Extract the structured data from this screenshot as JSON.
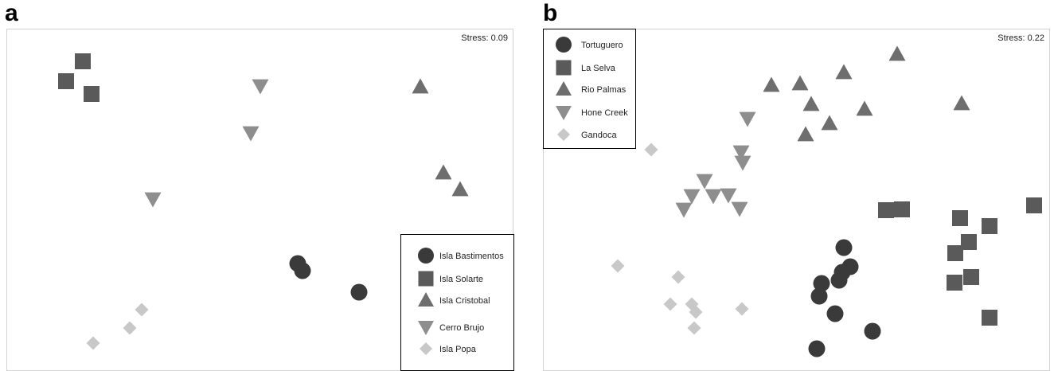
{
  "panels": [
    {
      "letter": "a",
      "stress_label": "Stress: 0.09",
      "legend_placement": "bottom-right"
    },
    {
      "letter": "b",
      "stress_label": "Stress: 0.22",
      "legend_placement": "top-left"
    }
  ],
  "chart_data": [
    {
      "type": "scatter",
      "title": "",
      "xlabel": "",
      "ylabel": "",
      "grid": false,
      "xlim": [
        0,
        637
      ],
      "ylim": [
        0,
        430
      ],
      "annotation": "Stress: 0.09",
      "series": [
        {
          "name": "Isla Bastimentos",
          "marker": "circle",
          "color": "#3a3a3a",
          "points": [
            [
              366,
              135
            ],
            [
              372,
              126
            ],
            [
              443,
              99
            ]
          ]
        },
        {
          "name": "Isla Solarte",
          "marker": "square",
          "color": "#5a5a5a",
          "points": [
            [
              96,
              389
            ],
            [
              75,
              364
            ],
            [
              107,
              348
            ]
          ]
        },
        {
          "name": "Isla Cristobal",
          "marker": "triangle-up",
          "color": "#6e6e6e",
          "points": [
            [
              520,
              357
            ],
            [
              549,
              249
            ],
            [
              570,
              228
            ]
          ]
        },
        {
          "name": "Cerro Brujo",
          "marker": "triangle-down",
          "color": "#8e8e8e",
          "points": [
            [
              319,
              358
            ],
            [
              307,
              299
            ],
            [
              184,
              216
            ]
          ]
        },
        {
          "name": "Isla Popa",
          "marker": "diamond",
          "color": "#c8c8c8",
          "points": [
            [
              170,
              77
            ],
            [
              155,
              54
            ],
            [
              109,
              35
            ]
          ]
        }
      ]
    },
    {
      "type": "scatter",
      "title": "",
      "xlabel": "",
      "ylabel": "",
      "grid": false,
      "xlim": [
        0,
        637
      ],
      "ylim": [
        0,
        430
      ],
      "annotation": "Stress: 0.22",
      "series": [
        {
          "name": "Tortuguero",
          "marker": "circle",
          "color": "#3a3a3a",
          "points": [
            [
              378,
              155
            ],
            [
              386,
              131
            ],
            [
              376,
              124
            ],
            [
              372,
              114
            ],
            [
              350,
              110
            ],
            [
              347,
              94
            ],
            [
              367,
              72
            ],
            [
              414,
              50
            ],
            [
              344,
              28
            ]
          ]
        },
        {
          "name": "La Selva",
          "marker": "square",
          "color": "#5a5a5a",
          "points": [
            [
              431,
              202
            ],
            [
              451,
              203
            ],
            [
              524,
              192
            ],
            [
              561,
              182
            ],
            [
              617,
              208
            ],
            [
              535,
              162
            ],
            [
              518,
              148
            ],
            [
              538,
              118
            ],
            [
              517,
              111
            ],
            [
              561,
              67
            ]
          ]
        },
        {
          "name": "Rio Palmas",
          "marker": "triangle-up",
          "color": "#6e6e6e",
          "points": [
            [
              445,
              398
            ],
            [
              287,
              359
            ],
            [
              323,
              361
            ],
            [
              378,
              375
            ],
            [
              526,
              336
            ],
            [
              337,
              335
            ],
            [
              404,
              329
            ],
            [
              360,
              311
            ],
            [
              330,
              297
            ]
          ]
        },
        {
          "name": "Hone Creek",
          "marker": "triangle-down",
          "color": "#8e8e8e",
          "points": [
            [
              257,
              317
            ],
            [
              249,
              275
            ],
            [
              251,
              262
            ],
            [
              203,
              239
            ],
            [
              187,
              220
            ],
            [
              214,
              220
            ],
            [
              233,
              221
            ],
            [
              177,
              203
            ],
            [
              247,
              204
            ]
          ]
        },
        {
          "name": "Gandoca",
          "marker": "diamond",
          "color": "#c8c8c8",
          "points": [
            [
              136,
              278
            ],
            [
              94,
              132
            ],
            [
              170,
              118
            ],
            [
              160,
              84
            ],
            [
              187,
              84
            ],
            [
              192,
              74
            ],
            [
              250,
              78
            ],
            [
              190,
              54
            ]
          ]
        }
      ]
    }
  ]
}
